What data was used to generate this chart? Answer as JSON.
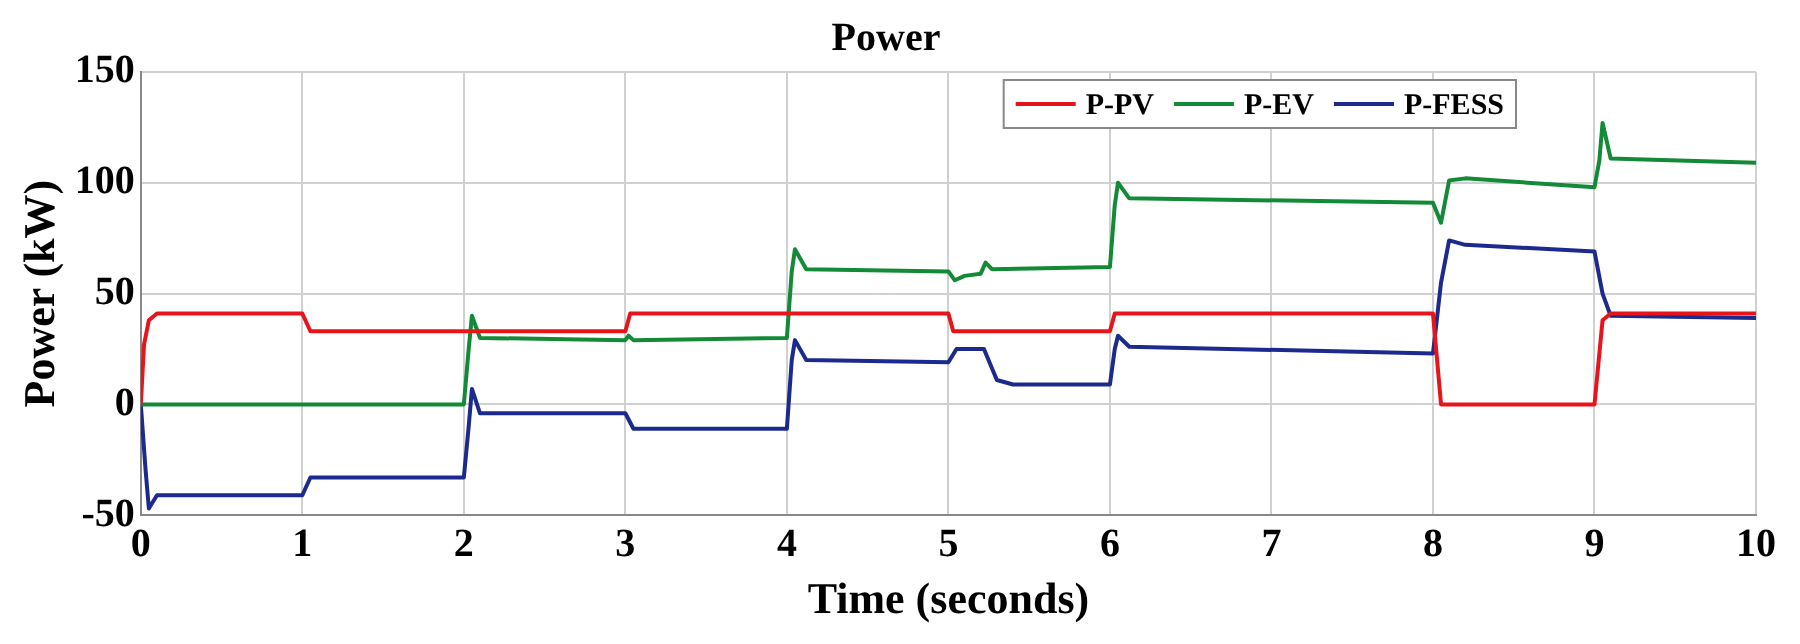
{
  "chart_data": {
    "type": "line",
    "title": "Power",
    "xlabel": "Time (seconds)",
    "ylabel": "Power (kW)",
    "xlim": [
      0,
      10
    ],
    "xticks": [
      0,
      1,
      2,
      3,
      4,
      5,
      6,
      7,
      8,
      9,
      10
    ],
    "ylim": [
      -50,
      150
    ],
    "yticks": [
      -50,
      0,
      50,
      100,
      150
    ],
    "grid": true,
    "legend": "top right",
    "marker": "none",
    "line_style": "solid",
    "series": [
      {
        "name": "P-PV",
        "color": "#e8141c",
        "x": [
          0,
          0.02,
          0.05,
          0.1,
          1,
          1.05,
          3,
          3.03,
          5,
          5.03,
          6,
          6.03,
          8,
          8.05,
          9,
          9.05,
          9.1,
          10
        ],
        "values": [
          0,
          27,
          38,
          41,
          41,
          33,
          33,
          41,
          41,
          33,
          33,
          41,
          41,
          0,
          0,
          38,
          41,
          41
        ]
      },
      {
        "name": "P-EV",
        "color": "#138a35",
        "x": [
          0,
          2,
          2.03,
          2.05,
          2.1,
          3,
          3.02,
          3.05,
          4,
          4.03,
          4.05,
          4.12,
          5,
          5.04,
          5.1,
          5.2,
          5.23,
          5.27,
          6,
          6.03,
          6.05,
          6.12,
          8,
          8.05,
          8.1,
          8.2,
          9,
          9.03,
          9.05,
          9.1,
          10
        ],
        "values": [
          0,
          0,
          25,
          40,
          30,
          29,
          31,
          29,
          30,
          60,
          70,
          61,
          60,
          56,
          58,
          59,
          64,
          61,
          62,
          90,
          100,
          93,
          91,
          82,
          101,
          102,
          98,
          110,
          127,
          111,
          109
        ]
      },
      {
        "name": "P-FESS",
        "color": "#1b2a8c",
        "x": [
          0,
          0.03,
          0.05,
          0.1,
          1,
          1.05,
          2,
          2.03,
          2.05,
          2.1,
          3,
          3.05,
          4,
          4.03,
          4.05,
          4.12,
          5,
          5.05,
          5.22,
          5.3,
          5.4,
          6,
          6.03,
          6.05,
          6.12,
          8,
          8.05,
          8.1,
          8.2,
          9,
          9.05,
          9.1,
          10
        ],
        "values": [
          0,
          -30,
          -47,
          -41,
          -41,
          -33,
          -33,
          -10,
          7,
          -4,
          -4,
          -11,
          -11,
          20,
          29,
          20,
          19,
          25,
          25,
          11,
          9,
          9,
          25,
          31,
          26,
          23,
          55,
          74,
          72,
          69,
          50,
          40,
          39
        ]
      }
    ]
  }
}
